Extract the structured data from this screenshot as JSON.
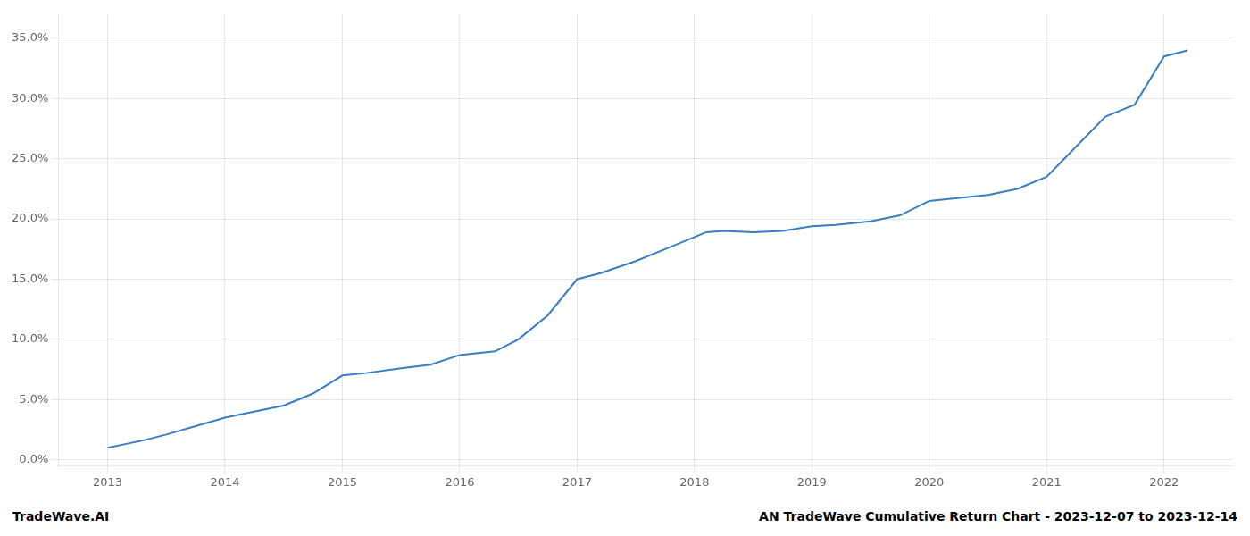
{
  "chart_data": {
    "type": "line",
    "x": [
      2013.0,
      2013.15,
      2013.3,
      2013.5,
      2013.75,
      2014.0,
      2014.2,
      2014.5,
      2014.75,
      2015.0,
      2015.2,
      2015.5,
      2015.75,
      2016.0,
      2016.1,
      2016.3,
      2016.5,
      2016.75,
      2017.0,
      2017.2,
      2017.5,
      2017.75,
      2018.0,
      2018.1,
      2018.25,
      2018.5,
      2018.75,
      2019.0,
      2019.2,
      2019.5,
      2019.75,
      2020.0,
      2020.2,
      2020.5,
      2020.75,
      2021.0,
      2021.2,
      2021.5,
      2021.75,
      2022.0,
      2022.2
    ],
    "values": [
      1.0,
      1.3,
      1.6,
      2.1,
      2.8,
      3.5,
      3.9,
      4.5,
      5.5,
      7.0,
      7.2,
      7.6,
      7.9,
      8.7,
      8.8,
      9.0,
      10.0,
      12.0,
      15.0,
      15.5,
      16.5,
      17.5,
      18.5,
      18.9,
      19.0,
      18.9,
      19.0,
      19.4,
      19.5,
      19.8,
      20.3,
      21.5,
      21.7,
      22.0,
      22.5,
      23.5,
      25.5,
      28.5,
      29.5,
      33.5,
      34.0
    ],
    "color": "#3a7ebf",
    "xlim": [
      2012.58,
      2022.58
    ],
    "ylim": [
      -0.5,
      37.0
    ],
    "xticks": [
      2013,
      2014,
      2015,
      2016,
      2017,
      2018,
      2019,
      2020,
      2021,
      2022
    ],
    "yticks": [
      {
        "value": 0.0,
        "label": "0.0%"
      },
      {
        "value": 5.0,
        "label": "5.0%"
      },
      {
        "value": 10.0,
        "label": "10.0%"
      },
      {
        "value": 15.0,
        "label": "15.0%"
      },
      {
        "value": 20.0,
        "label": "20.0%"
      },
      {
        "value": 25.0,
        "label": "25.0%"
      },
      {
        "value": 30.0,
        "label": "30.0%"
      },
      {
        "value": 35.0,
        "label": "35.0%"
      }
    ],
    "grid": true,
    "annotations": [
      "TradeWave.AI",
      "AN TradeWave Cumulative Return Chart - 2023-12-07 to 2023-12-14"
    ]
  }
}
